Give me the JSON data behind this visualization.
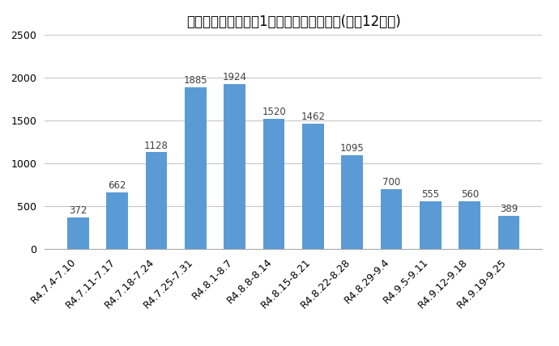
{
  "title": "市内コロナウイルス1週間の新規感染者数(直近12週間)",
  "categories": [
    "R4.7.4-7.10",
    "R4.7.11-7.17",
    "R4.7.18-7.24",
    "R4.7.25-7.31",
    "R4.8.1-8.7",
    "R4.8.8-8.14",
    "R4.8.15-8.21",
    "R4.8.22-8.28",
    "R4.8.29-9.4",
    "R4.9.5-9.11",
    "R4.9.12-9.18",
    "R4.9.19-9.25"
  ],
  "values": [
    372,
    662,
    1128,
    1885,
    1924,
    1520,
    1462,
    1095,
    700,
    555,
    560,
    389
  ],
  "bar_color": "#5b9bd5",
  "ylim": [
    0,
    2500
  ],
  "yticks": [
    0,
    500,
    1000,
    1500,
    2000,
    2500
  ],
  "title_fontsize": 12,
  "tick_fontsize": 9,
  "value_fontsize": 8.5,
  "bg_color": "#ffffff",
  "grid_color": "#c8c8c8"
}
